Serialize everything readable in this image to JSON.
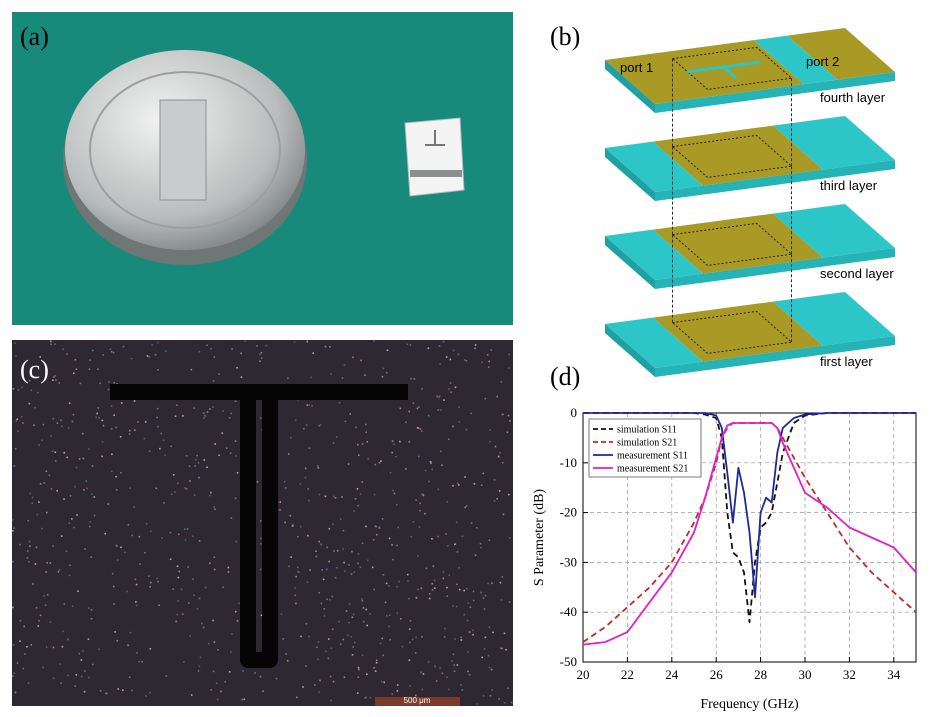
{
  "panels": {
    "a": "(a)",
    "b": "(b)",
    "c": "(c)",
    "d": "(d)"
  },
  "diagram": {
    "ports": [
      "port 1",
      "port 2"
    ],
    "layers": [
      "fourth layer",
      "third layer",
      "second layer",
      "first layer"
    ]
  },
  "micrograph": {
    "scale_bar": "500 μm"
  },
  "chart_data": {
    "type": "line",
    "xlabel": "Frequency (GHz)",
    "ylabel": "S Parameter (dB)",
    "xlim": [
      20,
      35
    ],
    "ylim": [
      -50,
      0
    ],
    "xticks": [
      20,
      22,
      24,
      26,
      28,
      30,
      32,
      34
    ],
    "yticks": [
      0,
      -10,
      -20,
      -30,
      -40,
      -50
    ],
    "grid": true,
    "legend": "upper left",
    "x": [
      20,
      21,
      22,
      23,
      24,
      25,
      25.5,
      26,
      26.25,
      26.5,
      26.75,
      27,
      27.25,
      27.5,
      27.75,
      28,
      28.25,
      28.5,
      28.75,
      29,
      29.5,
      30,
      31,
      32,
      33,
      34,
      35
    ],
    "series": [
      {
        "name": "simulation S11",
        "color": "#111111",
        "dashed": true,
        "values": [
          0,
          0,
          0,
          0,
          0,
          0,
          -0.3,
          -1,
          -5,
          -20,
          -28,
          -29,
          -32,
          -42,
          -30,
          -23,
          -22,
          -20,
          -14,
          -8,
          -2,
          -0.5,
          0,
          0,
          0,
          0,
          0
        ]
      },
      {
        "name": "simulation S21",
        "color": "#c0282a",
        "dashed": true,
        "values": [
          -46,
          -43,
          -39,
          -35,
          -30,
          -22,
          -17,
          -10,
          -5,
          -3,
          -2,
          -2,
          -2,
          -2,
          -2,
          -2,
          -2,
          -2,
          -3,
          -5,
          -9,
          -13,
          -20,
          -27,
          -32,
          -36,
          -40
        ]
      },
      {
        "name": "measurement S11",
        "color": "#1a2a9a",
        "dashed": false,
        "values": [
          0,
          0,
          0,
          0,
          0,
          0,
          0,
          -0.5,
          -3,
          -12,
          -22,
          -11,
          -16,
          -24,
          -37,
          -20,
          -17,
          -18,
          -8,
          -3,
          -1,
          -0.3,
          0,
          0,
          0,
          0,
          0
        ]
      },
      {
        "name": "measurement S21",
        "color": "#e020c8",
        "dashed": false,
        "values": [
          -46.5,
          -46,
          -44,
          -38,
          -32,
          -24,
          -17,
          -9,
          -5,
          -2.5,
          -2,
          -2,
          -2,
          -2,
          -2,
          -2,
          -2,
          -2,
          -3,
          -6,
          -11,
          -16,
          -19,
          -23,
          -25,
          -27,
          -32
        ]
      }
    ]
  }
}
